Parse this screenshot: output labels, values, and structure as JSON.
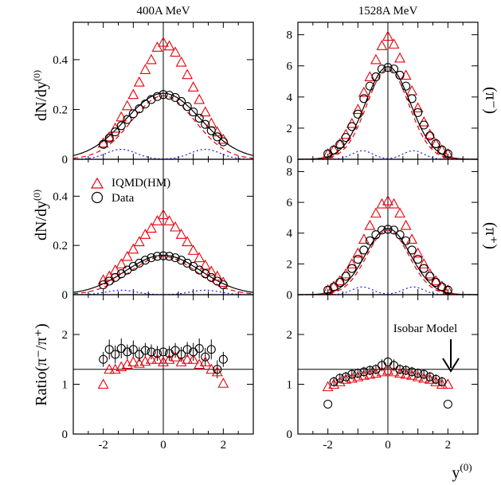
{
  "colors": {
    "iqmd": "#e8000a",
    "data": "#000000",
    "solid_fit": "#000000",
    "dashed": "#e8000a",
    "dotted": "#1a1aff"
  },
  "column_titles": [
    "400A MeV",
    "1528A MeV"
  ],
  "row_labels": {
    "ylabel_top": "dN/dy",
    "ylabel_mid": "dN/dy",
    "ylabel_sup": "(0)",
    "ylabel_ratio": "Ratio(π⁻/π⁺)",
    "right_top": "(π⁻)",
    "right_mid": "(π⁺)"
  },
  "xlabel": "y",
  "xlabel_sup": "(0)",
  "legend": [
    {
      "name": "IQMD(HM)",
      "marker": "triangle"
    },
    {
      "name": "Data",
      "marker": "circle"
    }
  ],
  "annotation": {
    "text": "Isobar Model"
  },
  "chart_data": [
    {
      "type": "scatter",
      "panel": "400A MeV π⁻",
      "xlim": [
        -3,
        3
      ],
      "ylim": [
        0,
        0.55
      ],
      "xticks": [
        -2,
        0,
        2
      ],
      "yticks": [
        0,
        0.2,
        0.4
      ],
      "yticklabels": [
        "0",
        "0.2",
        "0.4"
      ],
      "iqmd": {
        "x": [
          -2.0,
          -1.8,
          -1.6,
          -1.4,
          -1.2,
          -1.0,
          -0.8,
          -0.6,
          -0.4,
          -0.2,
          0.0,
          0.2,
          0.4,
          0.6,
          0.8,
          1.0,
          1.2,
          1.4,
          1.6,
          1.8,
          2.0
        ],
        "y": [
          0.065,
          0.09,
          0.125,
          0.17,
          0.215,
          0.26,
          0.31,
          0.36,
          0.4,
          0.45,
          0.47,
          0.455,
          0.43,
          0.39,
          0.34,
          0.29,
          0.24,
          0.19,
          0.145,
          0.11,
          0.08
        ]
      },
      "data": {
        "x": [
          -2.0,
          -1.8,
          -1.6,
          -1.4,
          -1.2,
          -1.0,
          -0.8,
          -0.6,
          -0.4,
          -0.2,
          0.0,
          0.2,
          0.4,
          0.6,
          0.8,
          1.0,
          1.2,
          1.4,
          1.6,
          1.8,
          2.0
        ],
        "y": [
          0.06,
          0.085,
          0.11,
          0.135,
          0.16,
          0.183,
          0.203,
          0.222,
          0.24,
          0.252,
          0.26,
          0.257,
          0.248,
          0.232,
          0.212,
          0.19,
          0.165,
          0.14,
          0.115,
          0.09,
          0.07
        ]
      },
      "fit_solid": {
        "amp": 0.265,
        "sigma": 1.25
      },
      "fit_dashed": {
        "amp": 0.255,
        "sigma": 1.05
      },
      "dotted": {
        "amp": 0.04,
        "sigma": 0.5,
        "centers": [
          -1.4,
          1.4
        ]
      }
    },
    {
      "type": "scatter",
      "panel": "1528A MeV π⁻",
      "xlim": [
        -3,
        3
      ],
      "ylim": [
        0,
        8.8
      ],
      "xticks": [
        -2,
        0,
        2
      ],
      "yticks": [
        0,
        2,
        4,
        6,
        8
      ],
      "yticklabels": [
        "0",
        "2",
        "4",
        "6",
        "8"
      ],
      "iqmd": {
        "x": [
          -2.0,
          -1.8,
          -1.6,
          -1.4,
          -1.2,
          -1.0,
          -0.8,
          -0.6,
          -0.4,
          -0.2,
          0.0,
          0.2,
          0.4,
          0.6,
          0.8,
          1.0,
          1.2,
          1.4,
          1.6,
          1.8,
          2.0
        ],
        "y": [
          0.35,
          0.6,
          1.0,
          1.6,
          2.3,
          3.2,
          4.3,
          5.3,
          6.4,
          7.3,
          7.9,
          7.4,
          6.5,
          5.4,
          4.4,
          3.3,
          2.4,
          1.6,
          1.0,
          0.6,
          0.35
        ]
      },
      "data": {
        "x": [
          -2.0,
          -1.8,
          -1.6,
          -1.4,
          -1.2,
          -1.0,
          -0.8,
          -0.6,
          -0.4,
          -0.2,
          0.0,
          0.2,
          0.4,
          0.6,
          0.8,
          1.0,
          1.2,
          1.4,
          1.6,
          1.8,
          2.0
        ],
        "y": [
          0.35,
          0.6,
          0.95,
          1.4,
          2.1,
          2.9,
          3.9,
          4.7,
          5.3,
          5.8,
          5.9,
          5.8,
          5.4,
          4.7,
          3.9,
          3.0,
          2.2,
          1.5,
          1.0,
          0.6,
          0.35
        ]
      },
      "fit_solid": {
        "amp": 5.95,
        "sigma": 0.75
      },
      "fit_dashed": {
        "amp": 5.8,
        "sigma": 0.7
      },
      "dotted": {
        "amp": 0.55,
        "sigma": 0.35,
        "centers": [
          -0.85,
          0.85
        ]
      }
    },
    {
      "type": "scatter",
      "panel": "400A MeV π⁺",
      "xlim": [
        -3,
        3
      ],
      "ylim": [
        0,
        0.55
      ],
      "xticks": [
        -2,
        0,
        2
      ],
      "yticks": [
        0,
        0.2,
        0.4
      ],
      "yticklabels": [
        "0",
        "0.2",
        "0.4"
      ],
      "iqmd": {
        "x": [
          -2.0,
          -1.8,
          -1.6,
          -1.4,
          -1.2,
          -1.0,
          -0.8,
          -0.6,
          -0.4,
          -0.2,
          0.0,
          0.2,
          0.4,
          0.6,
          0.8,
          1.0,
          1.2,
          1.4,
          1.6,
          1.8,
          2.0
        ],
        "y": [
          0.06,
          0.075,
          0.1,
          0.125,
          0.155,
          0.185,
          0.215,
          0.245,
          0.27,
          0.3,
          0.325,
          0.3,
          0.275,
          0.245,
          0.215,
          0.18,
          0.15,
          0.12,
          0.095,
          0.075,
          0.05
        ]
      },
      "data": {
        "x": [
          -2.0,
          -1.8,
          -1.6,
          -1.4,
          -1.2,
          -1.0,
          -0.8,
          -0.6,
          -0.4,
          -0.2,
          0.0,
          0.2,
          0.4,
          0.6,
          0.8,
          1.0,
          1.2,
          1.4,
          1.6,
          1.8,
          2.0
        ],
        "y": [
          0.04,
          0.055,
          0.07,
          0.085,
          0.1,
          0.115,
          0.128,
          0.14,
          0.15,
          0.156,
          0.158,
          0.156,
          0.15,
          0.14,
          0.128,
          0.115,
          0.1,
          0.085,
          0.07,
          0.055,
          0.04
        ]
      },
      "fit_solid": {
        "amp": 0.16,
        "sigma": 1.25
      },
      "fit_dashed": {
        "amp": 0.155,
        "sigma": 1.1
      },
      "dotted": {
        "amp": 0.018,
        "sigma": 0.5,
        "centers": [
          -1.4,
          1.4
        ]
      }
    },
    {
      "type": "scatter",
      "panel": "1528A MeV π⁺",
      "xlim": [
        -3,
        3
      ],
      "ylim": [
        0,
        8.8
      ],
      "xticks": [
        -2,
        0,
        2
      ],
      "yticks": [
        0,
        2,
        4,
        6,
        8
      ],
      "yticklabels": [
        "0",
        "2",
        "4",
        "6",
        "8"
      ],
      "iqmd": {
        "x": [
          -2.0,
          -1.8,
          -1.6,
          -1.4,
          -1.2,
          -1.0,
          -0.8,
          -0.6,
          -0.4,
          -0.2,
          0.0,
          0.2,
          0.4,
          0.6,
          0.8,
          1.0,
          1.2,
          1.4,
          1.6,
          1.8,
          2.0
        ],
        "y": [
          0.3,
          0.55,
          0.9,
          1.35,
          2.0,
          2.7,
          3.6,
          4.5,
          5.3,
          5.9,
          6.1,
          5.9,
          5.3,
          4.5,
          3.6,
          2.7,
          2.0,
          1.35,
          0.9,
          0.55,
          0.3
        ]
      },
      "data": {
        "x": [
          -2.0,
          -1.8,
          -1.6,
          -1.4,
          -1.2,
          -1.0,
          -0.8,
          -0.6,
          -0.4,
          -0.2,
          0.0,
          0.2,
          0.4,
          0.6,
          0.8,
          1.0,
          1.2,
          1.4,
          1.6,
          1.8,
          2.0
        ],
        "y": [
          0.3,
          0.5,
          0.8,
          1.2,
          1.7,
          2.3,
          2.9,
          3.5,
          3.9,
          4.2,
          4.25,
          4.2,
          3.9,
          3.5,
          2.9,
          2.3,
          1.7,
          1.2,
          0.8,
          0.5,
          0.3
        ]
      },
      "fit_solid": {
        "amp": 4.3,
        "sigma": 0.75
      },
      "fit_dashed": {
        "amp": 4.2,
        "sigma": 0.7
      },
      "dotted": {
        "amp": 0.5,
        "sigma": 0.35,
        "centers": [
          -0.85,
          0.85
        ]
      }
    },
    {
      "type": "scatter",
      "panel": "400A MeV ratio",
      "xlim": [
        -3,
        3
      ],
      "ylim": [
        0,
        2.8
      ],
      "xticks": [
        -2,
        0,
        2
      ],
      "yticks": [
        0,
        1,
        2
      ],
      "yticklabels": [
        "0",
        "1",
        "2"
      ],
      "hline": 1.3,
      "iqmd": {
        "x": [
          -2.0,
          -1.8,
          -1.6,
          -1.4,
          -1.2,
          -1.0,
          -0.8,
          -0.6,
          -0.4,
          -0.2,
          0.0,
          0.2,
          0.4,
          0.6,
          0.8,
          1.0,
          1.2,
          1.4,
          1.6,
          1.8,
          2.0
        ],
        "y": [
          1.0,
          1.3,
          1.3,
          1.35,
          1.4,
          1.45,
          1.42,
          1.46,
          1.5,
          1.5,
          1.45,
          1.5,
          1.55,
          1.45,
          1.5,
          1.5,
          1.4,
          1.45,
          1.3,
          1.25,
          1.02
        ]
      },
      "data": {
        "x": [
          -2.0,
          -1.8,
          -1.6,
          -1.4,
          -1.2,
          -1.0,
          -0.8,
          -0.6,
          -0.4,
          -0.2,
          0.0,
          0.2,
          0.4,
          0.6,
          0.8,
          1.0,
          1.2,
          1.4,
          1.6,
          1.8,
          2.0
        ],
        "y": [
          1.5,
          1.7,
          1.6,
          1.72,
          1.65,
          1.7,
          1.6,
          1.68,
          1.65,
          1.62,
          1.65,
          1.62,
          1.68,
          1.6,
          1.7,
          1.65,
          1.72,
          1.55,
          1.7,
          1.3,
          1.5
        ],
        "err": [
          0.15,
          0.2,
          0.18,
          0.2,
          0.15,
          0.18,
          0.15,
          0.15,
          0.15,
          0.15,
          0.15,
          0.15,
          0.15,
          0.15,
          0.15,
          0.18,
          0.2,
          0.18,
          0.2,
          0.18,
          0.15
        ]
      }
    },
    {
      "type": "scatter",
      "panel": "1528A MeV ratio",
      "xlim": [
        -3,
        3
      ],
      "ylim": [
        0,
        2.8
      ],
      "xticks": [
        -2,
        0,
        2
      ],
      "yticks": [
        0,
        1,
        2
      ],
      "yticklabels": [
        "0",
        "1",
        "2"
      ],
      "hline": 1.3,
      "iqmd": {
        "x": [
          -2.0,
          -1.8,
          -1.6,
          -1.4,
          -1.2,
          -1.0,
          -0.8,
          -0.6,
          -0.4,
          -0.2,
          0.0,
          0.2,
          0.4,
          0.6,
          0.8,
          1.0,
          1.2,
          1.4,
          1.6,
          1.8,
          2.0
        ],
        "y": [
          0.95,
          1.0,
          1.05,
          1.1,
          1.12,
          1.15,
          1.18,
          1.2,
          1.22,
          1.25,
          1.28,
          1.25,
          1.22,
          1.2,
          1.18,
          1.15,
          1.12,
          1.1,
          1.05,
          1.0,
          1.0
        ]
      },
      "data": {
        "x": [
          -2.0,
          -1.8,
          -1.6,
          -1.4,
          -1.2,
          -1.0,
          -0.8,
          -0.6,
          -0.4,
          -0.2,
          0.0,
          0.2,
          0.4,
          0.6,
          0.8,
          1.0,
          1.2,
          1.4,
          1.6,
          1.8,
          2.0
        ],
        "y": [
          0.6,
          1.05,
          1.12,
          1.15,
          1.2,
          1.22,
          1.25,
          1.28,
          1.3,
          1.38,
          1.45,
          1.38,
          1.3,
          1.28,
          1.25,
          1.22,
          1.2,
          1.15,
          1.1,
          1.05,
          0.6
        ],
        "err": [
          0.0,
          0.1,
          0.1,
          0.1,
          0.1,
          0.1,
          0.1,
          0.1,
          0.1,
          0.12,
          0.15,
          0.12,
          0.1,
          0.1,
          0.1,
          0.1,
          0.1,
          0.1,
          0.1,
          0.1,
          0.0
        ]
      }
    }
  ]
}
